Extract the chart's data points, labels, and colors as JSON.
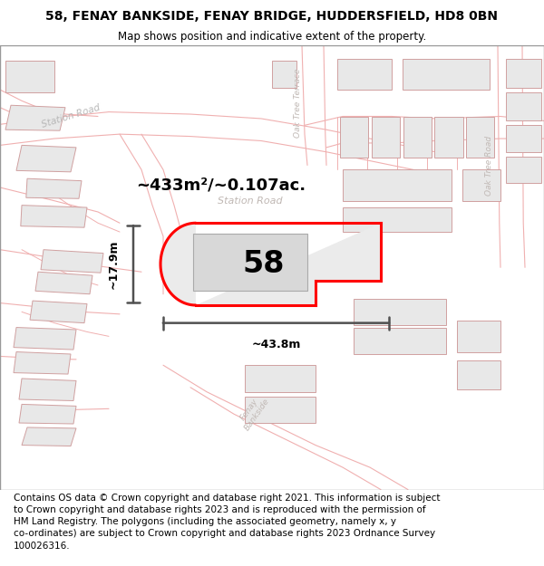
{
  "title_line1": "58, FENAY BANKSIDE, FENAY BRIDGE, HUDDERSFIELD, HD8 0BN",
  "title_line2": "Map shows position and indicative extent of the property.",
  "footer_text": "Contains OS data © Crown copyright and database right 2021. This information is subject to Crown copyright and database rights 2023 and is reproduced with the permission of HM Land Registry. The polygons (including the associated geometry, namely x, y co-ordinates) are subject to Crown copyright and database rights 2023 Ordnance Survey 100026316.",
  "area_label": "~433m²/~0.107ac.",
  "width_label": "~43.8m",
  "height_label": "~17.9m",
  "plot_number": "58",
  "map_bg": "#ffffff",
  "building_fill": "#e8e8e8",
  "building_edge": "#d0a0a0",
  "road_line_color": "#f0b0b0",
  "highlight_color": "#ff0000",
  "dim_line_color": "#505050",
  "road_label_color": "#b0b0b0",
  "title_fontsize": 10,
  "footer_fontsize": 7.5
}
